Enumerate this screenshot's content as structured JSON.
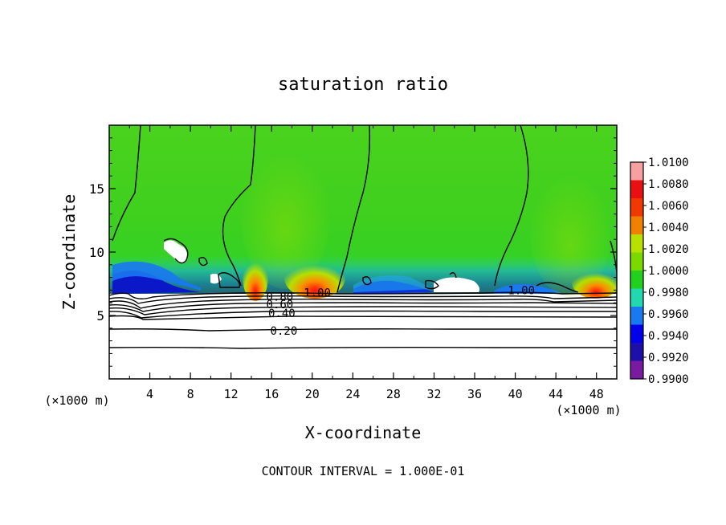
{
  "chart_data": {
    "type": "heatmap",
    "title": "saturation ratio",
    "xlabel": "X-coordinate",
    "ylabel": "Z-coordinate",
    "x_unit_left": "(×1000 m)",
    "x_unit_right": "(×1000 m)",
    "footer": "CONTOUR INTERVAL = 1.000E-01",
    "xlim": [
      0,
      50
    ],
    "ylim": [
      0,
      20
    ],
    "x_ticks": [
      4,
      8,
      12,
      16,
      20,
      24,
      28,
      32,
      36,
      40,
      44,
      48
    ],
    "y_ticks": [
      5,
      10,
      15
    ],
    "colorbar": {
      "levels": [
        "1.0100",
        "1.0080",
        "1.0060",
        "1.0040",
        "1.0020",
        "1.0000",
        "0.9980",
        "0.9960",
        "0.9940",
        "0.9920",
        "0.9900"
      ],
      "colors": [
        "#f7a0a0",
        "#e81010",
        "#f03800",
        "#f08000",
        "#b8e000",
        "#7ada00",
        "#22d01e",
        "#22d8b0",
        "#1a78f0",
        "#0000ea",
        "#1c10a8",
        "#7a1aa0"
      ]
    },
    "contour_labels": [
      {
        "text": "1.00",
        "x": 20.5,
        "z": 6.8
      },
      {
        "text": "1.00",
        "x": 40.6,
        "z": 7.0
      },
      {
        "text": "0.80",
        "x": 16.8,
        "z": 6.5
      },
      {
        "text": "0.60",
        "x": 16.8,
        "z": 5.9
      },
      {
        "text": "0.40",
        "x": 17.0,
        "z": 5.2
      },
      {
        "text": "0.20",
        "x": 17.2,
        "z": 3.8
      }
    ],
    "saturation_contours_z": [
      6.8,
      6.6,
      6.4,
      6.2,
      6.0,
      5.7,
      5.3,
      4.0,
      2.5
    ]
  }
}
